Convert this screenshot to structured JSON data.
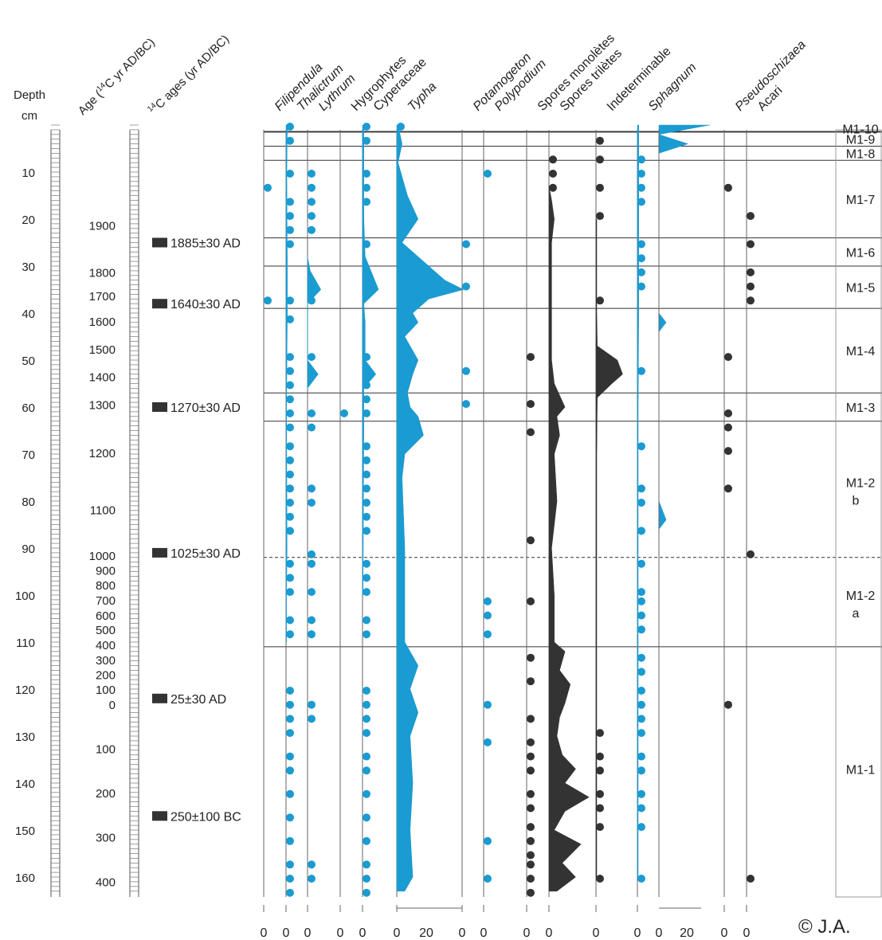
{
  "chart_data": {
    "type": "pollen-diagram",
    "depth_axis": {
      "label_line1": "Depth",
      "label_line2": "cm",
      "ticks": [
        10,
        20,
        30,
        40,
        50,
        60,
        70,
        80,
        90,
        100,
        110,
        120,
        130,
        140,
        150,
        160
      ],
      "range": [
        0,
        165
      ]
    },
    "age_axis": {
      "label": "Age (14C yr AD/BC)",
      "label_parts": [
        "Age (",
        "14",
        "C yr AD/BC)"
      ],
      "ticks": [
        {
          "label": "1900",
          "depth": 21.3
        },
        {
          "label": "1800",
          "depth": 31.3
        },
        {
          "label": "1700",
          "depth": 36.3
        },
        {
          "label": "1600",
          "depth": 41.7
        },
        {
          "label": "1500",
          "depth": 47.6
        },
        {
          "label": "1400",
          "depth": 53.5
        },
        {
          "label": "1300",
          "depth": 59.4
        },
        {
          "label": "1200",
          "depth": 69.7
        },
        {
          "label": "1100",
          "depth": 81.8
        },
        {
          "label": "1000",
          "depth": 91.5
        },
        {
          "label": "900",
          "depth": 94.7
        },
        {
          "label": "800",
          "depth": 97.8
        },
        {
          "label": "700",
          "depth": 101.0
        },
        {
          "label": "600",
          "depth": 104.2
        },
        {
          "label": "500",
          "depth": 107.3
        },
        {
          "label": "400",
          "depth": 110.5
        },
        {
          "label": "300",
          "depth": 113.7
        },
        {
          "label": "200",
          "depth": 116.9
        },
        {
          "label": "100",
          "depth": 120.0
        },
        {
          "label": "0",
          "depth": 123.2
        },
        {
          "label": "100",
          "depth": 132.6
        },
        {
          "label": "200",
          "depth": 142.0
        },
        {
          "label": "300",
          "depth": 151.4
        },
        {
          "label": "400",
          "depth": 160.9
        }
      ]
    },
    "c14_dates": {
      "label": "14C ages (yr AD/BC)",
      "label_parts": [
        "14",
        "C ages (yr AD/BC)"
      ],
      "dates": [
        {
          "label": "1885±30 AD",
          "depth": 25
        },
        {
          "label": "1640±30 AD",
          "depth": 38
        },
        {
          "label": "1270±30 AD",
          "depth": 60
        },
        {
          "label": "1025±30 AD",
          "depth": 91
        },
        {
          "label": "25±30 AD",
          "depth": 122
        },
        {
          "label": "250±100 BC",
          "depth": 147
        }
      ]
    },
    "taxa": [
      {
        "name": "Filipendula",
        "italic": true,
        "color": "#1a9bd1",
        "zero": 331,
        "dots": [
          13,
          37
        ]
      },
      {
        "name": "Thalictrum",
        "italic": true,
        "color": "#1a9bd1",
        "zero": 359,
        "dots": [
          0,
          3,
          10,
          16,
          19,
          22,
          25,
          37,
          41,
          49,
          52,
          55,
          58,
          61,
          64,
          68,
          71,
          74,
          77,
          80,
          83,
          86,
          93,
          96,
          99,
          105,
          108,
          120,
          123,
          126,
          129,
          134,
          137,
          142,
          147,
          152,
          157,
          160,
          163
        ],
        "profile": [
          [
            0,
            0.5
          ],
          [
            10,
            0.3
          ],
          [
            30,
            0.5
          ],
          [
            40,
            0.5
          ],
          [
            60,
            0.2
          ],
          [
            90,
            0.4
          ],
          [
            100,
            0.2
          ],
          [
            110,
            0.2
          ]
        ]
      },
      {
        "name": "Lythrum",
        "italic": true,
        "color": "#1a9bd1",
        "zero": 386,
        "dots": [
          10,
          13,
          16,
          19,
          22,
          37,
          49,
          61,
          64,
          77,
          80,
          91,
          93,
          99,
          105,
          108,
          123,
          126,
          157,
          160
        ],
        "profile": [
          [
            28,
            0
          ],
          [
            31,
            1
          ],
          [
            35,
            5
          ],
          [
            38,
            0
          ],
          [
            50,
            0
          ],
          [
            53,
            4
          ],
          [
            56,
            0
          ]
        ]
      },
      {
        "name": "Hygrophytes",
        "italic": false,
        "color": "#1a9bd1",
        "zero": 427,
        "dots": [
          61
        ]
      },
      {
        "name": "Cyperaceae",
        "italic": false,
        "color": "#1a9bd1",
        "zero": 455,
        "dots": [
          0,
          3,
          10,
          13,
          16,
          25,
          49,
          52,
          55,
          58,
          61,
          68,
          71,
          74,
          77,
          80,
          83,
          86,
          93,
          96,
          99,
          105,
          108,
          120,
          123,
          126,
          129,
          134,
          137,
          142,
          147,
          152,
          157,
          160,
          163
        ],
        "profile": [
          [
            0,
            0.5
          ],
          [
            20,
            0.5
          ],
          [
            28,
            1
          ],
          [
            35,
            6
          ],
          [
            38,
            0.5
          ],
          [
            42,
            1
          ],
          [
            50,
            1
          ],
          [
            53,
            5
          ],
          [
            56,
            0.5
          ],
          [
            65,
            0.5
          ],
          [
            100,
            0.2
          ]
        ]
      },
      {
        "name": "Typha",
        "italic": true,
        "color": "#1a9bd1",
        "zero": 498,
        "dots": [
          0
        ],
        "profile": [
          [
            0,
            0.5
          ],
          [
            4,
            2
          ],
          [
            8,
            0.5
          ],
          [
            15,
            4
          ],
          [
            20,
            8
          ],
          [
            25,
            2
          ],
          [
            28,
            8
          ],
          [
            33,
            18
          ],
          [
            35,
            25
          ],
          [
            37,
            12
          ],
          [
            40,
            6
          ],
          [
            42,
            8
          ],
          [
            45,
            3
          ],
          [
            50,
            8
          ],
          [
            53,
            6
          ],
          [
            57,
            4
          ],
          [
            60,
            5
          ],
          [
            62,
            8
          ],
          [
            66,
            10
          ],
          [
            70,
            3
          ],
          [
            75,
            2
          ],
          [
            90,
            3
          ],
          [
            100,
            3
          ],
          [
            110,
            3
          ],
          [
            115,
            8
          ],
          [
            120,
            5
          ],
          [
            125,
            8
          ],
          [
            130,
            5
          ],
          [
            140,
            6
          ],
          [
            150,
            5
          ],
          [
            160,
            6
          ],
          [
            163,
            3
          ]
        ]
      },
      {
        "name": "Potamogeton",
        "italic": true,
        "color": "#1a9bd1",
        "zero": 580,
        "dots": [
          25,
          34,
          52,
          59
        ]
      },
      {
        "name": "Polypodium",
        "italic": true,
        "color": "#1a9bd1",
        "zero": 607,
        "dots": [
          10,
          101,
          104,
          108,
          123,
          131,
          152,
          160
        ]
      },
      {
        "name": "Spores monolètes",
        "italic": false,
        "color": "#333333",
        "zero": 661,
        "dots": [
          49,
          59,
          65,
          88,
          101,
          113,
          118,
          126,
          131,
          134,
          137,
          142,
          145,
          149,
          152,
          155,
          157,
          160,
          163
        ]
      },
      {
        "name": "Spores trilètes",
        "italic": false,
        "color": "#333333",
        "zero": 689,
        "dots": [
          7,
          10,
          13
        ],
        "profile": [
          [
            13,
            0
          ],
          [
            16,
            1
          ],
          [
            20,
            2
          ],
          [
            25,
            1
          ],
          [
            30,
            1
          ],
          [
            40,
            1
          ],
          [
            50,
            1
          ],
          [
            55,
            2
          ],
          [
            60,
            6
          ],
          [
            62,
            3
          ],
          [
            66,
            4
          ],
          [
            70,
            2
          ],
          [
            80,
            3
          ],
          [
            90,
            1
          ],
          [
            100,
            2
          ],
          [
            110,
            2
          ],
          [
            112,
            6
          ],
          [
            116,
            4
          ],
          [
            119,
            8
          ],
          [
            123,
            6
          ],
          [
            126,
            4
          ],
          [
            130,
            3
          ],
          [
            134,
            5
          ],
          [
            137,
            10
          ],
          [
            140,
            6
          ],
          [
            143,
            15
          ],
          [
            146,
            6
          ],
          [
            150,
            2
          ],
          [
            153,
            12
          ],
          [
            157,
            5
          ],
          [
            160,
            10
          ],
          [
            163,
            3
          ]
        ]
      },
      {
        "name": "Indeterminable",
        "italic": false,
        "color": "#333333",
        "zero": 748,
        "dots": [
          3,
          7,
          13,
          19,
          37,
          129,
          134,
          137,
          142,
          145,
          149,
          160
        ],
        "profile": [
          [
            20,
            0.3
          ],
          [
            40,
            0.3
          ],
          [
            47,
            0.5
          ],
          [
            50,
            8
          ],
          [
            53,
            10
          ],
          [
            55,
            6
          ],
          [
            58,
            0.5
          ],
          [
            70,
            0.3
          ],
          [
            110,
            0.3
          ],
          [
            160,
            0.3
          ]
        ]
      },
      {
        "name": "Sphagnum",
        "italic": true,
        "color": "#1a9bd1",
        "zero": 800,
        "dots": [
          7,
          10,
          13,
          16,
          25,
          28,
          31,
          34,
          52,
          68,
          77,
          80,
          86,
          93,
          99,
          101,
          104,
          107,
          113,
          116,
          120,
          123,
          126,
          129,
          134,
          137,
          142,
          145,
          149,
          160
        ],
        "profile": [
          [
            0,
            0.5
          ],
          [
            20,
            0.5
          ],
          [
            40,
            0.5
          ],
          [
            60,
            0.3
          ],
          [
            100,
            0.3
          ],
          [
            160,
            0.3
          ]
        ]
      },
      {
        "name": "Pseudoschizaea",
        "italic": true,
        "color": "#333333",
        "zero": 909,
        "dots": [
          13,
          49,
          61,
          64,
          69,
          77,
          123
        ]
      },
      {
        "name": "Acari",
        "italic": false,
        "color": "#333333",
        "zero": 937,
        "dots": [
          19,
          25,
          31,
          34,
          37,
          91,
          160
        ]
      }
    ],
    "sphagnum_profile": [
      [
        0,
        35
      ],
      [
        2,
        0
      ],
      [
        4,
        20
      ],
      [
        6,
        0
      ],
      [
        8,
        0
      ],
      [
        40,
        0
      ],
      [
        42,
        5
      ],
      [
        44,
        0
      ],
      [
        80,
        0
      ],
      [
        84,
        5
      ],
      [
        86,
        0
      ],
      [
        160,
        0
      ]
    ],
    "zones": [
      {
        "label": "M1-10",
        "top": 0,
        "bottom": 1.5
      },
      {
        "label": "M1-9",
        "top": 1.5,
        "bottom": 4.5
      },
      {
        "label": "M1-8",
        "top": 4.5,
        "bottom": 7.5
      },
      {
        "label": "M1-7",
        "top": 7.5,
        "bottom": 24
      },
      {
        "label": "M1-6",
        "top": 24,
        "bottom": 30
      },
      {
        "label": "M1-5",
        "top": 30,
        "bottom": 39
      },
      {
        "label": "M1-4",
        "top": 39,
        "bottom": 57
      },
      {
        "label": "M1-3",
        "top": 57,
        "bottom": 63
      },
      {
        "label": "M1-2 b",
        "top": 63,
        "bottom": 92
      },
      {
        "label": "M1-2 a",
        "top": 92,
        "bottom": 111
      },
      {
        "label": "M1-1",
        "top": 111,
        "bottom": 163
      }
    ],
    "bottom_axis_labels": [
      "0",
      "0",
      "0",
      "0",
      "0",
      "0",
      "20",
      "0",
      "0",
      "0",
      "0",
      "0",
      "0",
      "0",
      "20",
      "0",
      "0"
    ],
    "copyright": "© J.A."
  }
}
